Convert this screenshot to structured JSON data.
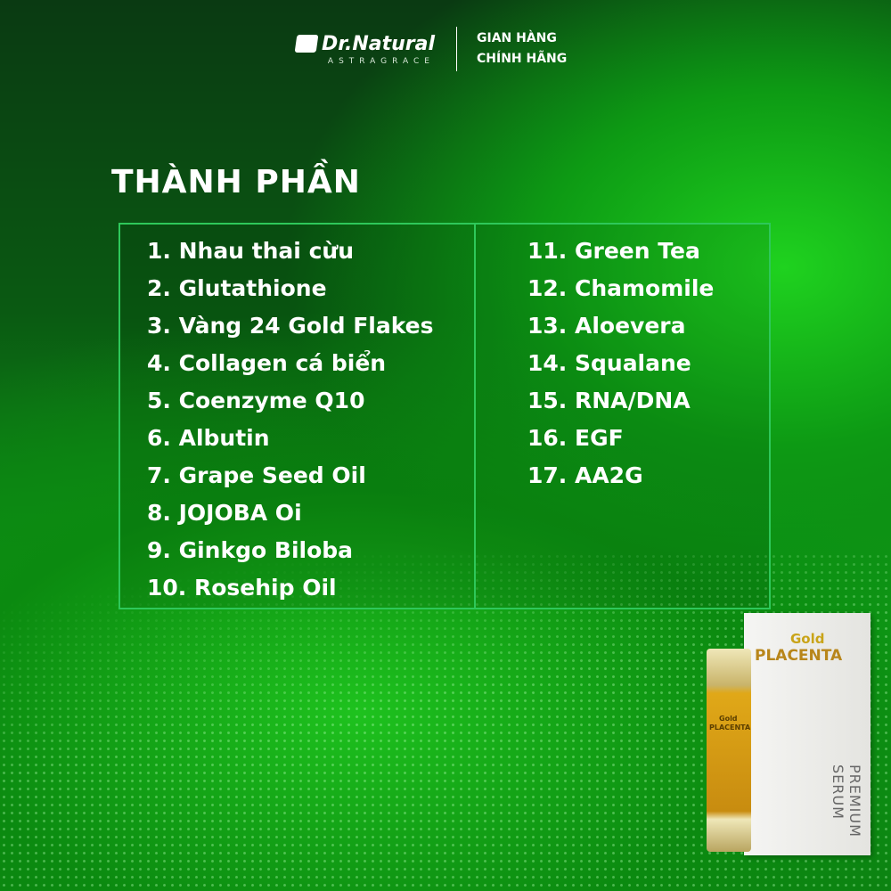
{
  "header": {
    "brand": "Dr.Natural",
    "brand_sub": "ASTRAGRACE",
    "tag_line1": "GIAN HÀNG",
    "tag_line2": "CHÍNH HÃNG"
  },
  "title": "THÀNH PHẦN",
  "ingredients_left": [
    "1. Nhau thai cừu",
    "2. Glutathione",
    "3. Vàng 24 Gold Flakes",
    "4. Collagen cá biển",
    "5. Coenzyme Q10",
    "6. Albutin",
    "7. Grape Seed Oil",
    "8. JOJOBA Oi",
    "9. Ginkgo Biloba",
    "10. Rosehip Oil"
  ],
  "ingredients_right": [
    "11. Green Tea",
    "12. Chamomile",
    "13. Aloevera",
    "14. Squalane",
    "15. RNA/DNA",
    "16. EGF",
    "17. AA2G"
  ],
  "product": {
    "gold": "Gold",
    "placenta": "PLACENTA",
    "serum": "PREMIUM SERUM"
  },
  "colors": {
    "accent_border": "#2ec85a",
    "background": "#0d9a14"
  }
}
